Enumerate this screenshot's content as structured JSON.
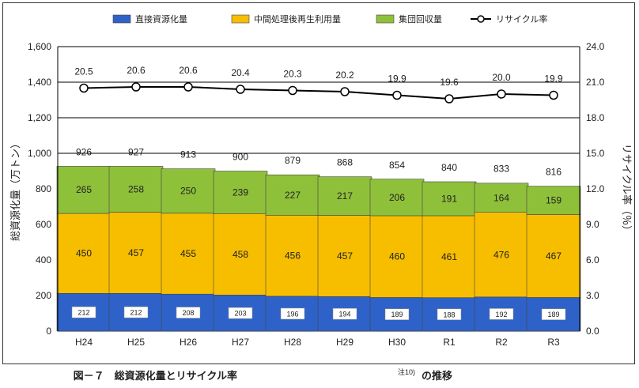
{
  "chart_data": {
    "type": "bar",
    "stacked": true,
    "categories": [
      "H24",
      "H25",
      "H26",
      "H27",
      "H28",
      "H29",
      "H30",
      "R1",
      "R2",
      "R3"
    ],
    "series": [
      {
        "name": "直接資源化量",
        "values": [
          212,
          212,
          208,
          203,
          196,
          194,
          189,
          188,
          192,
          189
        ]
      },
      {
        "name": "中間処理後再生利用量",
        "values": [
          450,
          457,
          455,
          458,
          456,
          457,
          460,
          461,
          476,
          467
        ]
      },
      {
        "name": "集団回収量",
        "values": [
          265,
          258,
          250,
          239,
          227,
          217,
          206,
          191,
          164,
          159
        ]
      }
    ],
    "totals": [
      926,
      927,
      913,
      900,
      879,
      868,
      854,
      840,
      833,
      816
    ],
    "line_series": {
      "name": "リサイクル率",
      "axis": "right",
      "values": [
        20.5,
        20.6,
        20.6,
        20.4,
        20.3,
        20.2,
        19.9,
        19.6,
        20.0,
        19.9
      ]
    },
    "ylabel": "総資源化量（万トン）",
    "y2label": "リサイクル率（％）",
    "ylim": [
      0,
      1600
    ],
    "y2lim": [
      0,
      24
    ],
    "yticks": [
      "0",
      "200",
      "400",
      "600",
      "800",
      "1,000",
      "1,200",
      "1,400",
      "1,600"
    ],
    "y2ticks": [
      "0.0",
      "3.0",
      "6.0",
      "9.0",
      "12.0",
      "15.0",
      "18.0",
      "21.0",
      "24.0"
    ],
    "grid": true,
    "legend": "top",
    "colors": {
      "direct": "#2e62c9",
      "processed": "#f7be00",
      "group": "#8fc03a",
      "line": "#000000"
    }
  },
  "caption": {
    "main": "図－７　総資源化量とリサイクル率",
    "note": "注10)",
    "suffix": "の推移"
  }
}
